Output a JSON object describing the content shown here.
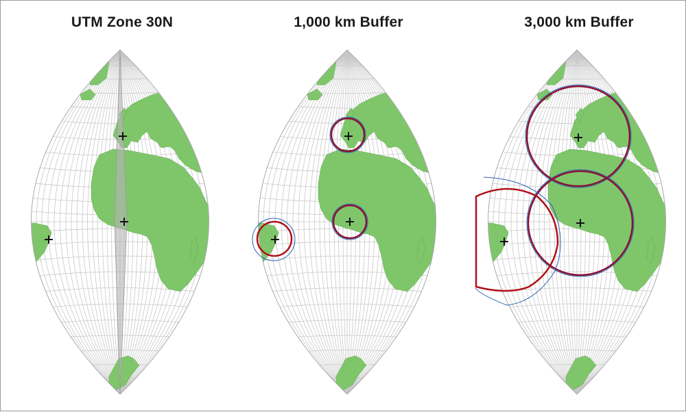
{
  "panels": [
    {
      "title": "UTM Zone 30N"
    },
    {
      "title": "1,000 km Buffer"
    },
    {
      "title": "3,000 km Buffer"
    }
  ],
  "colors": {
    "land": "#7fc66b",
    "graticule": "#c4c4c4",
    "zone_strip": "#b4b4b4",
    "buffer_true": "#b0101a",
    "buffer_projected": "#2b62b3",
    "marker": "#000000"
  }
}
